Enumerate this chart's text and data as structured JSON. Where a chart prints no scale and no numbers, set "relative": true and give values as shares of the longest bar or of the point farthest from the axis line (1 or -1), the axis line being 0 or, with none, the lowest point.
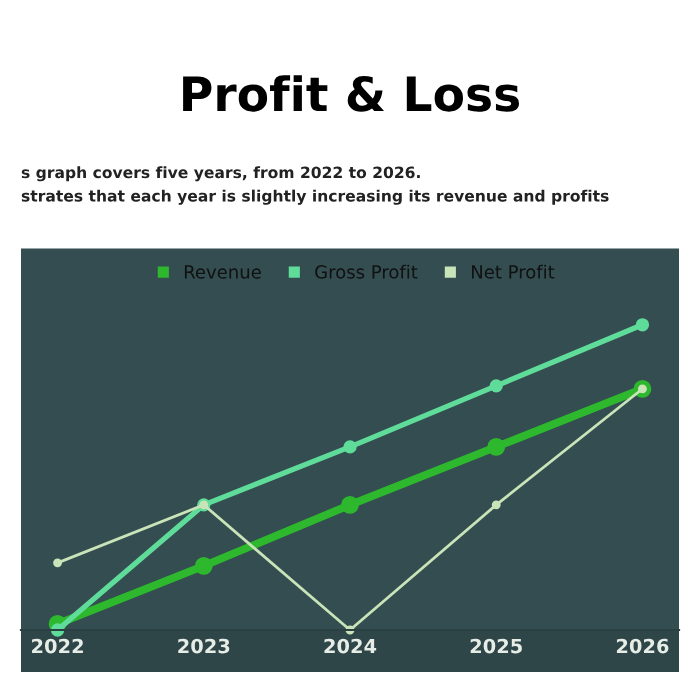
{
  "chart_data": {
    "type": "line",
    "title": "Profit & Loss",
    "subtitle": "s graph covers five years, from 2022 to 2026.\nstrates that each year is slightly increasing its revenue and profits",
    "categories": [
      "2022",
      "2023",
      "2024",
      "2025",
      "2026"
    ],
    "relative": true,
    "series": [
      {
        "name": "Revenue",
        "color": "#2db82d",
        "values": [
          0.02,
          0.21,
          0.41,
          0.6,
          0.79
        ]
      },
      {
        "name": "Gross Profit",
        "color": "#5fdc9a",
        "values": [
          0,
          0.41,
          0.6,
          0.8,
          1
        ]
      },
      {
        "name": "Net Profit",
        "color": "#c9e4b8",
        "values": [
          0.22,
          0.41,
          0,
          0.41,
          0.79
        ]
      }
    ],
    "marker": "circle",
    "line_style": "solid",
    "legend": "top",
    "grid": false
  }
}
